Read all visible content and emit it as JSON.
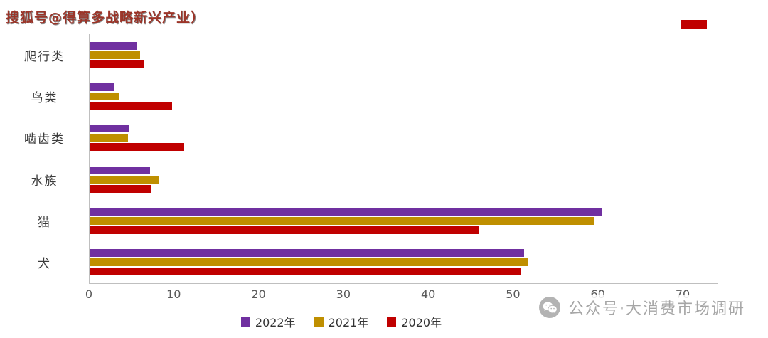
{
  "watermarks": {
    "top": "搜狐号@得算多战略新兴产业）",
    "bottom_right": "公众号·大消费市场调研",
    "wechat_icon": "wechat-logo-gray"
  },
  "decor": {
    "red_box_color": "#c00000"
  },
  "chart_data": {
    "type": "bar",
    "orientation": "horizontal",
    "title": "",
    "categories": [
      "爬行类",
      "鸟类",
      "啮齿类",
      "水族",
      "猫",
      "犬"
    ],
    "series": [
      {
        "name": "2022年",
        "color": "#7030a0",
        "values": [
          5.6,
          3.0,
          4.8,
          7.2,
          60.5,
          51.3
        ]
      },
      {
        "name": "2021年",
        "color": "#bf8f00",
        "values": [
          6.0,
          3.6,
          4.6,
          8.2,
          59.5,
          51.7
        ]
      },
      {
        "name": "2020年",
        "color": "#c00000",
        "values": [
          6.5,
          9.8,
          11.2,
          7.4,
          46.0,
          51.0
        ]
      }
    ],
    "xlim": [
      0,
      70
    ],
    "xticks": [
      0,
      10,
      20,
      30,
      40,
      50,
      60,
      70
    ],
    "xlabel": "",
    "ylabel": "",
    "grid": false,
    "legend_position": "bottom"
  }
}
